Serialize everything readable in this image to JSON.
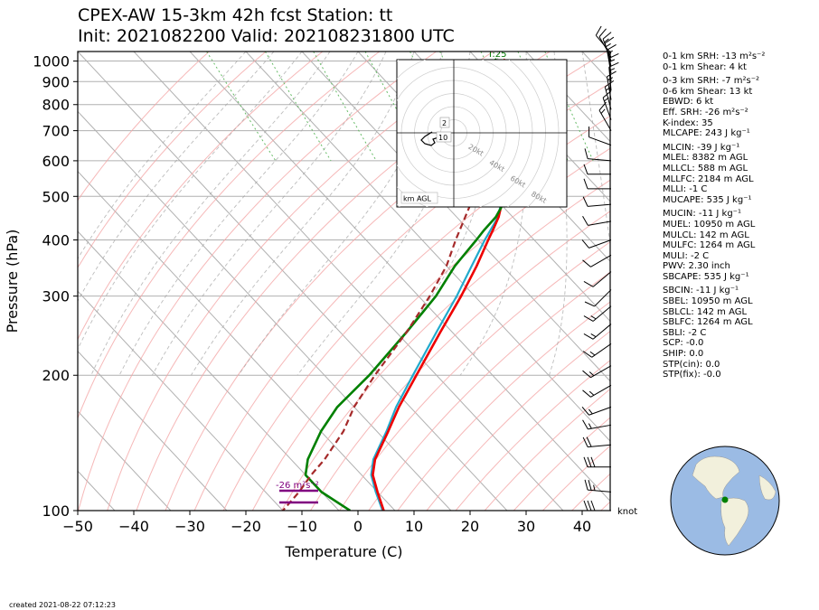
{
  "header": {
    "title_line1": "CPEX-AW 15-3km  42h fcst  Station: tt",
    "title_line2": "Init: 2021082200  Valid: 2021082318​00 UTC"
  },
  "chart_data": {
    "type": "skew-t",
    "xlabel": "Temperature (C)",
    "ylabel": "Pressure (hPa)",
    "xlim": [
      -50,
      45
    ],
    "ylim": [
      1050,
      100
    ],
    "xticks": [
      -50,
      -40,
      -30,
      -20,
      -10,
      0,
      10,
      20,
      30,
      40
    ],
    "yticks": [
      100,
      200,
      300,
      400,
      500,
      600,
      700,
      800,
      900,
      1000
    ],
    "skew_deg_per_decade": 75,
    "colors": {
      "temperature": "#ee0000",
      "dewpoint": "#008000",
      "virtual_temperature": "#22aacc",
      "parcel": "#a52a2a",
      "isobar": "#b0b0b0",
      "isotherm": "#b0b0b0",
      "dry_adiabat": "#f4a6a6",
      "moist_adiabat": "#a0a0a0",
      "mixing_ratio": "#66bb66",
      "srh_bar": "#800080",
      "globe_land": "#f2f0dc",
      "globe_ocean": "#9bbbe4",
      "station_marker": "#008000"
    },
    "temperature": {
      "p": [
        1010,
        1000,
        975,
        950,
        925,
        900,
        850,
        800,
        750,
        700,
        650,
        600,
        550,
        500,
        450,
        420,
        400,
        350,
        300,
        250,
        200,
        170,
        150,
        130,
        120,
        110,
        100
      ],
      "t": [
        25,
        24.4,
        24,
        23.2,
        22.2,
        21.2,
        19,
        17,
        14.8,
        12.8,
        10.6,
        8.0,
        5.2,
        1.8,
        -2.5,
        -5.8,
        -8.2,
        -14.6,
        -22.4,
        -32,
        -43.6,
        -52,
        -58,
        -65,
        -68,
        -70,
        -72
      ]
    },
    "virtual_temperature": {
      "p": [
        1000,
        950,
        900,
        850,
        800,
        750,
        700,
        650,
        600,
        550,
        500,
        450,
        400,
        350,
        300,
        250,
        200,
        170,
        150,
        130,
        120,
        110,
        100
      ],
      "t": [
        24,
        22.6,
        20.6,
        18.6,
        16.6,
        14.5,
        12.6,
        10.4,
        7.9,
        5.0,
        1.6,
        -2.6,
        -8.8,
        -15.5,
        -23.2,
        -32.7,
        -44.2,
        -52.5,
        -58.3,
        -65.3,
        -68.3,
        -70.3,
        -72.2
      ]
    },
    "dewpoint": {
      "p": [
        1010,
        1000,
        975,
        950,
        925,
        900,
        850,
        800,
        750,
        720,
        700,
        650,
        600,
        550,
        500,
        450,
        420,
        400,
        350,
        300,
        250,
        200,
        170,
        150,
        130,
        120,
        110,
        100
      ],
      "t": [
        23.5,
        22.6,
        21.8,
        21,
        20.2,
        19.4,
        18.3,
        16.8,
        14.8,
        14.2,
        14.2,
        12,
        9.2,
        6,
        2.5,
        -3,
        -7.4,
        -10.3,
        -18.5,
        -26.9,
        -38,
        -52,
        -63,
        -70,
        -77,
        -80,
        -80,
        -78
      ]
    },
    "parcel": {
      "p": [
        1000,
        960,
        900,
        850,
        800,
        700,
        600,
        500,
        400,
        350,
        300,
        250,
        200,
        170,
        150,
        130,
        120,
        110,
        100
      ],
      "t": [
        25,
        27.2,
        23.6,
        20.4,
        17.5,
        11.6,
        4.4,
        -3.5,
        -14,
        -20,
        -28,
        -38,
        -51,
        -60,
        -66,
        -74,
        -79,
        -84,
        -90
      ]
    },
    "lcl_label": "T:25",
    "srh_label": "-26 m²s⁻²",
    "hodograph": {
      "rings": [
        "20kt",
        "40kt",
        "60kt",
        "80kt"
      ],
      "height_markers": [
        "2",
        "10"
      ],
      "legend": "km AGL"
    },
    "barb_unit_label": "knot",
    "wind_barbs": [
      {
        "p": 100,
        "dir": 270,
        "spd": 30
      },
      {
        "p": 110,
        "dir": 275,
        "spd": 25
      },
      {
        "p": 125,
        "dir": 270,
        "spd": 30
      },
      {
        "p": 140,
        "dir": 265,
        "spd": 20
      },
      {
        "p": 155,
        "dir": 260,
        "spd": 15
      },
      {
        "p": 170,
        "dir": 250,
        "spd": 15
      },
      {
        "p": 190,
        "dir": 240,
        "spd": 15
      },
      {
        "p": 210,
        "dir": 240,
        "spd": 15
      },
      {
        "p": 235,
        "dir": 235,
        "spd": 15
      },
      {
        "p": 260,
        "dir": 230,
        "spd": 15
      },
      {
        "p": 285,
        "dir": 230,
        "spd": 15
      },
      {
        "p": 310,
        "dir": 225,
        "spd": 10
      },
      {
        "p": 340,
        "dir": 230,
        "spd": 10
      },
      {
        "p": 370,
        "dir": 240,
        "spd": 10
      },
      {
        "p": 400,
        "dir": 250,
        "spd": 10
      },
      {
        "p": 440,
        "dir": 260,
        "spd": 10
      },
      {
        "p": 480,
        "dir": 265,
        "spd": 10
      },
      {
        "p": 520,
        "dir": 270,
        "spd": 10
      },
      {
        "p": 560,
        "dir": 270,
        "spd": 10
      },
      {
        "p": 600,
        "dir": 275,
        "spd": 10
      },
      {
        "p": 650,
        "dir": 290,
        "spd": 10
      },
      {
        "p": 700,
        "dir": 330,
        "spd": 15
      },
      {
        "p": 740,
        "dir": 340,
        "spd": 15
      },
      {
        "p": 780,
        "dir": 345,
        "spd": 15
      },
      {
        "p": 820,
        "dir": 350,
        "spd": 15
      },
      {
        "p": 860,
        "dir": 355,
        "spd": 15
      },
      {
        "p": 900,
        "dir": 355,
        "spd": 15
      },
      {
        "p": 940,
        "dir": 350,
        "spd": 15
      },
      {
        "p": 975,
        "dir": 345,
        "spd": 15
      },
      {
        "p": 1000,
        "dir": 340,
        "spd": 15
      },
      {
        "p": 1020,
        "dir": 330,
        "spd": 10
      },
      {
        "p": 1040,
        "dir": 320,
        "spd": 10
      }
    ]
  },
  "indices": [
    {
      "name": "0-1 km SRH",
      "value": "-13 m²s⁻²"
    },
    {
      "name": "0-1 km Shear",
      "value": "4 kt"
    },
    {
      "name": "",
      "value": ""
    },
    {
      "name": "0-3 km SRH",
      "value": "-7 m²s⁻²"
    },
    {
      "name": "0-6 km Shear",
      "value": "13 kt"
    },
    {
      "name": "EBWD",
      "value": "6 kt"
    },
    {
      "name": "Eff. SRH",
      "value": "-26 m²s⁻²"
    },
    {
      "name": "K-index",
      "value": "35"
    },
    {
      "name": "MLCAPE",
      "value": "243 J kg⁻¹"
    },
    {
      "name": "",
      "value": ""
    },
    {
      "name": "MLCIN",
      "value": "-39 J kg⁻¹"
    },
    {
      "name": "MLEL",
      "value": "8382 m AGL"
    },
    {
      "name": "MLLCL",
      "value": "588 m AGL"
    },
    {
      "name": "MLLFC",
      "value": "2184 m AGL"
    },
    {
      "name": "MLLI",
      "value": "-1 C"
    },
    {
      "name": "MUCAPE",
      "value": "535 J kg⁻¹"
    },
    {
      "name": "",
      "value": ""
    },
    {
      "name": "MUCIN",
      "value": "-11 J kg⁻¹"
    },
    {
      "name": "MUEL",
      "value": "10950 m AGL"
    },
    {
      "name": "MULCL",
      "value": "142 m AGL"
    },
    {
      "name": "MULFC",
      "value": "1264 m AGL"
    },
    {
      "name": "MULI",
      "value": "-2 C"
    },
    {
      "name": "PWV",
      "value": "2.30 inch"
    },
    {
      "name": "SBCAPE",
      "value": "535 J kg⁻¹"
    },
    {
      "name": "",
      "value": ""
    },
    {
      "name": "SBCIN",
      "value": "-11 J kg⁻¹"
    },
    {
      "name": "SBEL",
      "value": "10950 m AGL"
    },
    {
      "name": "SBLCL",
      "value": "142 m AGL"
    },
    {
      "name": "SBLFC",
      "value": "1264 m AGL"
    },
    {
      "name": "SBLI",
      "value": "-2 C"
    },
    {
      "name": "SCP",
      "value": "-0.0"
    },
    {
      "name": "SHIP",
      "value": "0.0"
    },
    {
      "name": "STP(cin)",
      "value": "0.0"
    },
    {
      "name": "STP(fix)",
      "value": "-0.0"
    }
  ],
  "footer": {
    "created": "created 2021-08-22 07:12:23"
  }
}
